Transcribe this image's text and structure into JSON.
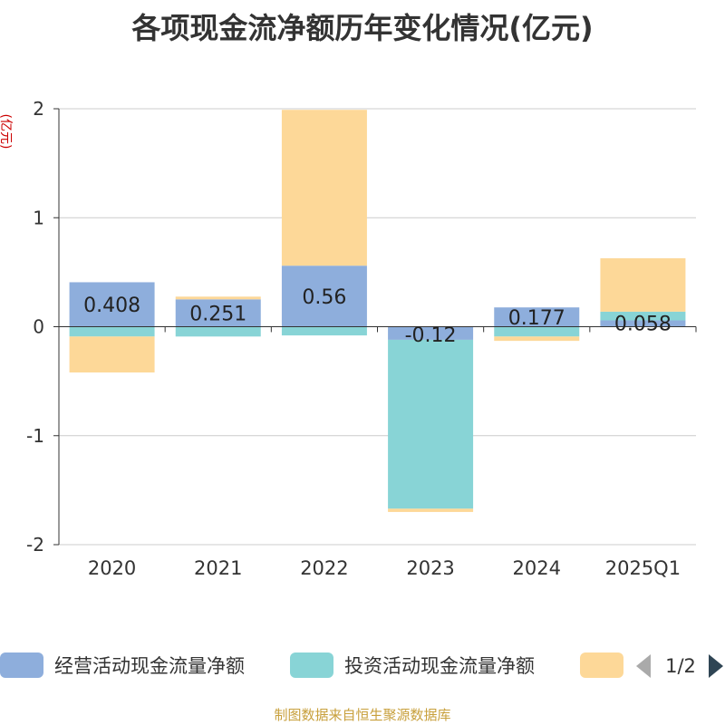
{
  "chart_data": {
    "type": "bar",
    "stacked": true,
    "title": "各项现金流净额历年变化情况(亿元)",
    "ylabel": "(亿元)",
    "xlabel": "",
    "categories": [
      "2020",
      "2021",
      "2022",
      "2023",
      "2024",
      "2025Q1"
    ],
    "ylim": [
      -2,
      2
    ],
    "yticks": [
      2,
      1,
      0,
      -1,
      -2
    ],
    "grid": true,
    "series": [
      {
        "name": "经营活动现金流量净额",
        "color": "#8eaedc",
        "values": [
          0.408,
          0.251,
          0.56,
          -0.12,
          0.177,
          0.058
        ],
        "labels": [
          "0.408",
          "0.251",
          "0.56",
          "-0.12",
          "0.177",
          "0.058"
        ]
      },
      {
        "name": "投资活动现金流量净额",
        "color": "#88d4d6",
        "values": [
          -0.09,
          -0.09,
          -0.08,
          -1.55,
          -0.09,
          0.08
        ]
      },
      {
        "name": "",
        "color": "#fdd898",
        "values": [
          -0.33,
          0.025,
          1.43,
          -0.03,
          -0.04,
          0.49
        ]
      }
    ],
    "legend": {
      "position": "bottom",
      "page": "1/2"
    },
    "source": "制图数据来自恒生聚源数据库"
  }
}
